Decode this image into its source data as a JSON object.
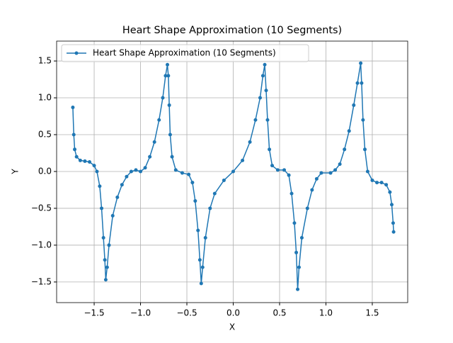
{
  "chart_data": {
    "type": "line",
    "title": "Heart Shape Approximation (10 Segments)",
    "xlabel": "X",
    "ylabel": "Y",
    "legend": "upper left",
    "grid": true,
    "xlim": [
      -1.905,
      1.882
    ],
    "ylim": [
      -1.78,
      1.77
    ],
    "xticks": [
      {
        "value": -1.5,
        "label": "−1.5"
      },
      {
        "value": -1.0,
        "label": "−1.0"
      },
      {
        "value": -0.5,
        "label": "−0.5"
      },
      {
        "value": 0,
        "label": "0.0"
      },
      0.5,
      {
        "value": 1.0,
        "label": "1.0"
      },
      1.5
    ],
    "yticks": [
      {
        "value": -1.5,
        "label": "−1.5"
      },
      {
        "value": -1.0,
        "label": "−1.0"
      },
      {
        "value": -0.5,
        "label": "−0.5"
      },
      {
        "value": 0,
        "label": "0.0"
      },
      0.5,
      {
        "value": 1.0,
        "label": "1.0"
      },
      1.5
    ],
    "series": [
      {
        "name": "Heart Shape Approximation (10 Segments)",
        "color": "#1f77b4",
        "x": [
          -1.73,
          -1.72,
          -1.71,
          -1.69,
          -1.65,
          -1.6,
          -1.55,
          -1.5,
          -1.47,
          -1.44,
          -1.42,
          -1.4,
          -1.385,
          -1.375,
          -1.36,
          -1.34,
          -1.3,
          -1.25,
          -1.2,
          -1.15,
          -1.1,
          -1.05,
          -1.0,
          -0.95,
          -0.9,
          -0.85,
          -0.8,
          -0.76,
          -0.73,
          -0.71,
          -0.7,
          -0.69,
          -0.68,
          -0.66,
          -0.62,
          -0.55,
          -0.48,
          -0.44,
          -0.41,
          -0.38,
          -0.36,
          -0.345,
          -0.33,
          -0.3,
          -0.25,
          -0.2,
          -0.1,
          0,
          0.1,
          0.18,
          0.24,
          0.29,
          0.32,
          0.34,
          0.355,
          0.37,
          0.39,
          0.42,
          0.48,
          0.55,
          0.6,
          0.63,
          0.66,
          0.68,
          0.695,
          0.71,
          0.74,
          0.8,
          0.85,
          0.9,
          0.95,
          1.05,
          1.1,
          1.15,
          1.2,
          1.25,
          1.3,
          1.34,
          1.375,
          1.385,
          1.4,
          1.42,
          1.45,
          1.5,
          1.55,
          1.6,
          1.65,
          1.69,
          1.71,
          1.725,
          1.73
        ],
        "values": [
          0.87,
          0.5,
          0.3,
          0.2,
          0.15,
          0.14,
          0.13,
          0.08,
          0,
          -0.2,
          -0.5,
          -0.9,
          -1.2,
          -1.47,
          -1.3,
          -1.0,
          -0.6,
          -0.35,
          -0.18,
          -0.07,
          0,
          0.02,
          0,
          0.05,
          0.2,
          0.4,
          0.7,
          1.0,
          1.3,
          1.45,
          1.3,
          0.9,
          0.5,
          0.2,
          0.02,
          -0.02,
          -0.04,
          -0.15,
          -0.4,
          -0.8,
          -1.2,
          -1.52,
          -1.3,
          -0.9,
          -0.5,
          -0.3,
          -0.12,
          0,
          0.15,
          0.4,
          0.7,
          1.0,
          1.3,
          1.45,
          1.1,
          0.7,
          0.3,
          0.08,
          0.02,
          0.02,
          -0.05,
          -0.3,
          -0.7,
          -1.1,
          -1.6,
          -1.3,
          -0.9,
          -0.5,
          -0.25,
          -0.1,
          -0.02,
          -0.02,
          0.02,
          0.1,
          0.3,
          0.55,
          0.9,
          1.2,
          1.47,
          1.2,
          0.7,
          0.3,
          0,
          -0.12,
          -0.15,
          -0.15,
          -0.18,
          -0.28,
          -0.45,
          -0.7,
          -0.82
        ]
      }
    ]
  }
}
